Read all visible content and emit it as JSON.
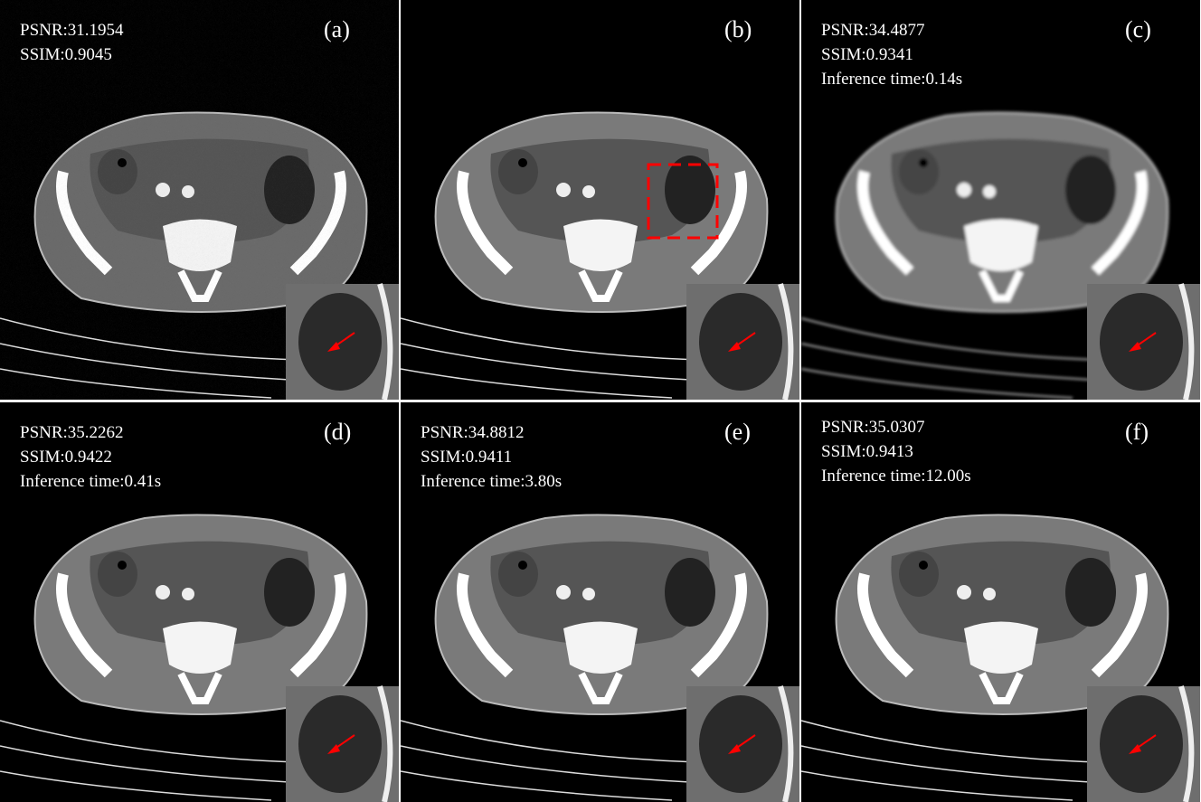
{
  "panels": [
    {
      "label": "(a)",
      "psnr": "PSNR:31.1954",
      "ssim": "SSIM:0.9045",
      "time": ""
    },
    {
      "label": "(b)",
      "psnr": "",
      "ssim": "",
      "time": ""
    },
    {
      "label": "(c)",
      "psnr": "PSNR:34.4877",
      "ssim": "SSIM:0.9341",
      "time": "Inference time:0.14s"
    },
    {
      "label": "(d)",
      "psnr": "PSNR:35.2262",
      "ssim": "SSIM:0.9422",
      "time": "Inference time:0.41s"
    },
    {
      "label": "(e)",
      "psnr": "PSNR:34.8812",
      "ssim": "SSIM:0.9411",
      "time": "Inference time:3.80s"
    },
    {
      "label": "(f)",
      "psnr": "PSNR:35.0307",
      "ssim": "SSIM:0.9413",
      "time": "Inference time:12.00s"
    }
  ],
  "colors": {
    "annotation": "#ff0000",
    "background": "#000000",
    "text": "#ffffff"
  }
}
